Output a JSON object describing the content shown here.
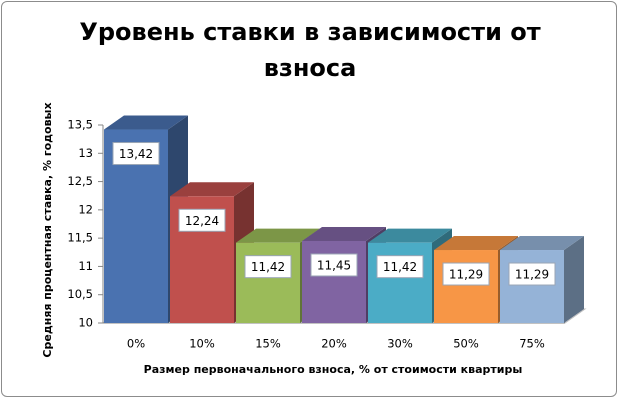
{
  "chart_data": {
    "type": "bar3d",
    "title": "Уровень ставки в зависимости от взноса",
    "x_label": "Размер первоначального  взноса, % от стоимости  квартиры",
    "y_label": "Средняя  процентная  ставка,  % годовых",
    "categories": [
      "0%",
      "10%",
      "15%",
      "20%",
      "30%",
      "50%",
      "75%"
    ],
    "values": [
      13.42,
      12.24,
      11.42,
      11.45,
      11.42,
      11.29,
      11.29
    ],
    "value_labels": [
      "13,42",
      "12,24",
      "11,42",
      "11,45",
      "11,42",
      "11,29",
      "11,29"
    ],
    "colors": [
      "#4a72b0",
      "#c0504d",
      "#9bbb59",
      "#8064a2",
      "#4bacc6",
      "#f79646",
      "#95b3d7"
    ],
    "ylim": [
      10,
      13.5
    ],
    "yticks": [
      10,
      {
        "value": 10.5,
        "label": "10,5"
      },
      11,
      {
        "value": 11.5,
        "label": "11,5"
      },
      12,
      {
        "value": 12.5,
        "label": "12,5"
      },
      13,
      {
        "value": 13.5,
        "label": "13,5"
      }
    ]
  }
}
